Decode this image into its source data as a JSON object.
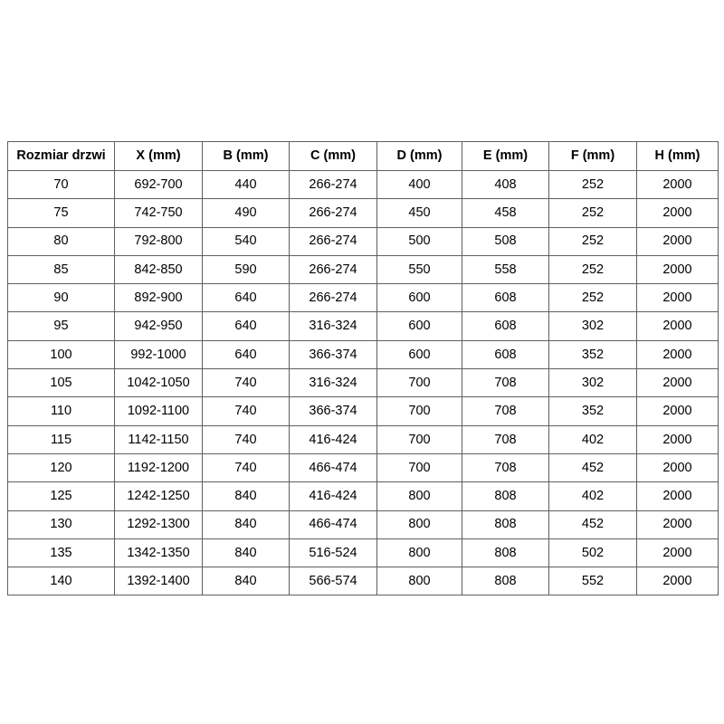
{
  "colors": {
    "border": "#5f5f5f",
    "text": "#000000",
    "background": "#ffffff"
  },
  "chart_data": {
    "type": "table",
    "title": "",
    "columns": [
      "Rozmiar drzwi",
      "X (mm)",
      "B (mm)",
      "C (mm)",
      "D (mm)",
      "E (mm)",
      "F (mm)",
      "H (mm)"
    ],
    "rows": [
      [
        "70",
        "692-700",
        "440",
        "266-274",
        "400",
        "408",
        "252",
        "2000"
      ],
      [
        "75",
        "742-750",
        "490",
        "266-274",
        "450",
        "458",
        "252",
        "2000"
      ],
      [
        "80",
        "792-800",
        "540",
        "266-274",
        "500",
        "508",
        "252",
        "2000"
      ],
      [
        "85",
        "842-850",
        "590",
        "266-274",
        "550",
        "558",
        "252",
        "2000"
      ],
      [
        "90",
        "892-900",
        "640",
        "266-274",
        "600",
        "608",
        "252",
        "2000"
      ],
      [
        "95",
        "942-950",
        "640",
        "316-324",
        "600",
        "608",
        "302",
        "2000"
      ],
      [
        "100",
        "992-1000",
        "640",
        "366-374",
        "600",
        "608",
        "352",
        "2000"
      ],
      [
        "105",
        "1042-1050",
        "740",
        "316-324",
        "700",
        "708",
        "302",
        "2000"
      ],
      [
        "110",
        "1092-1100",
        "740",
        "366-374",
        "700",
        "708",
        "352",
        "2000"
      ],
      [
        "115",
        "1142-1150",
        "740",
        "416-424",
        "700",
        "708",
        "402",
        "2000"
      ],
      [
        "120",
        "1192-1200",
        "740",
        "466-474",
        "700",
        "708",
        "452",
        "2000"
      ],
      [
        "125",
        "1242-1250",
        "840",
        "416-424",
        "800",
        "808",
        "402",
        "2000"
      ],
      [
        "130",
        "1292-1300",
        "840",
        "466-474",
        "800",
        "808",
        "452",
        "2000"
      ],
      [
        "135",
        "1342-1350",
        "840",
        "516-524",
        "800",
        "808",
        "502",
        "2000"
      ],
      [
        "140",
        "1392-1400",
        "840",
        "566-574",
        "800",
        "808",
        "552",
        "2000"
      ]
    ]
  }
}
